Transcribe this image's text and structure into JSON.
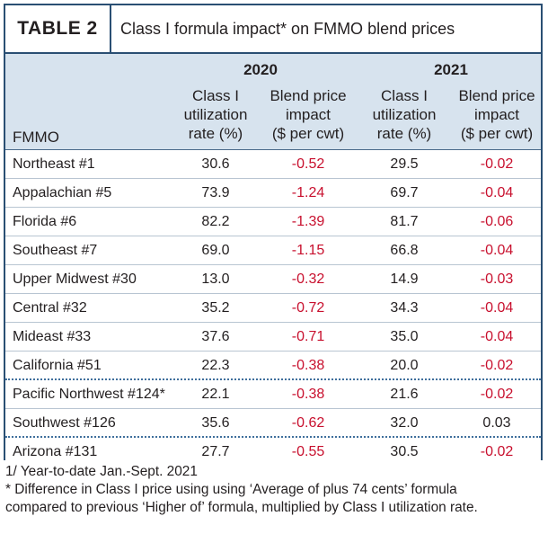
{
  "table_label": "TABLE 2",
  "title": "Class I formula impact* on FMMO blend prices",
  "years": [
    "2020",
    "2021"
  ],
  "columns": {
    "fmmo": "FMMO",
    "util_line1": "Class I",
    "util_line2": "utilization",
    "util_line3": "rate (%)",
    "blend_line1": "Blend price",
    "blend_line2": "impact",
    "blend_line3": "($ per cwt)"
  },
  "rows": [
    {
      "name": "Northeast #1",
      "util2020": "30.6",
      "blend2020": "-0.52",
      "util2021": "29.5",
      "blend2021": "-0.02"
    },
    {
      "name": "Appalachian #5",
      "util2020": "73.9",
      "blend2020": "-1.24",
      "util2021": "69.7",
      "blend2021": "-0.04"
    },
    {
      "name": "Florida #6",
      "util2020": "82.2",
      "blend2020": "-1.39",
      "util2021": "81.7",
      "blend2021": "-0.06"
    },
    {
      "name": "Southeast #7",
      "util2020": "69.0",
      "blend2020": "-1.15",
      "util2021": "66.8",
      "blend2021": "-0.04"
    },
    {
      "name": "Upper Midwest #30",
      "util2020": "13.0",
      "blend2020": "-0.32",
      "util2021": "14.9",
      "blend2021": "-0.03"
    },
    {
      "name": "Central #32",
      "util2020": "35.2",
      "blend2020": "-0.72",
      "util2021": "34.3",
      "blend2021": "-0.04"
    },
    {
      "name": "Mideast #33",
      "util2020": "37.6",
      "blend2020": "-0.71",
      "util2021": "35.0",
      "blend2021": "-0.04"
    },
    {
      "name": "California #51",
      "util2020": "22.3",
      "blend2020": "-0.38",
      "util2021": "20.0",
      "blend2021": "-0.02"
    },
    {
      "name": "Pacific Northwest #124*",
      "util2020": "22.1",
      "blend2020": "-0.38",
      "util2021": "21.6",
      "blend2021": "-0.02"
    },
    {
      "name": "Southwest #126",
      "util2020": "35.6",
      "blend2020": "-0.62",
      "util2021": "32.0",
      "blend2021": "0.03"
    },
    {
      "name": "Arizona #131",
      "util2020": "27.7",
      "blend2020": "-0.55",
      "util2021": "30.5",
      "blend2021": "-0.02"
    }
  ],
  "footnotes": {
    "note1": "1/ Year-to-date Jan.-Sept. 2021",
    "note2_line1": "* Difference in Class I price using using ‘Average of plus 74 cents’ formula",
    "note2_line2": "compared to previous ‘Higher of’ formula, multiplied by Class I utilization rate."
  },
  "colors": {
    "frame": "#2a4f73",
    "header_bg": "#d7e3ee",
    "negative": "#c8102e"
  }
}
